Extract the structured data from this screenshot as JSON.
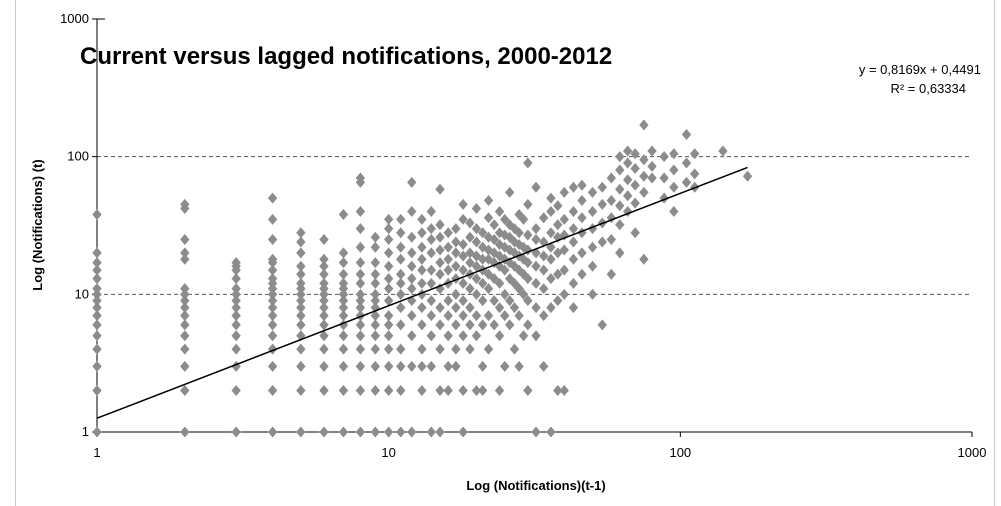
{
  "chart_data": {
    "type": "scatter",
    "title": "Current versus lagged notifications, 2000-2012",
    "xlabel": "Log (Notifications)(t-1)",
    "ylabel": "Log (Notifications) (t)",
    "xscale": "log",
    "yscale": "log",
    "xlim": [
      1,
      1000
    ],
    "ylim": [
      1,
      1000
    ],
    "x_ticks": [
      "1",
      "10",
      "100",
      "1000"
    ],
    "y_ticks": [
      "1",
      "10",
      "100",
      "1000"
    ],
    "grid": "horizontal-dashed",
    "legend": "none",
    "marker_color": "#8c8c8c",
    "trendline": {
      "equation": "y = 0,8169x + 0,4491",
      "r_squared": "R² = 0,63334",
      "slope": 0.8169,
      "log_intercept": 0.1,
      "x_range": [
        1,
        170
      ],
      "color": "#000000"
    },
    "points": [
      [
        1,
        1
      ],
      [
        1,
        2
      ],
      [
        1,
        3
      ],
      [
        1,
        4
      ],
      [
        1,
        5
      ],
      [
        1,
        6
      ],
      [
        1,
        7
      ],
      [
        1,
        8
      ],
      [
        1,
        9
      ],
      [
        1,
        10
      ],
      [
        1,
        11
      ],
      [
        1,
        13
      ],
      [
        1,
        15
      ],
      [
        1,
        17
      ],
      [
        1,
        20
      ],
      [
        1,
        38
      ],
      [
        2,
        1
      ],
      [
        2,
        2
      ],
      [
        2,
        3
      ],
      [
        2,
        4
      ],
      [
        2,
        5
      ],
      [
        2,
        6
      ],
      [
        2,
        7
      ],
      [
        2,
        8
      ],
      [
        2,
        9
      ],
      [
        2,
        10
      ],
      [
        2,
        11
      ],
      [
        2,
        18
      ],
      [
        2,
        20
      ],
      [
        2,
        25
      ],
      [
        2,
        42
      ],
      [
        2,
        45
      ],
      [
        3,
        1
      ],
      [
        3,
        2
      ],
      [
        3,
        3
      ],
      [
        3,
        4
      ],
      [
        3,
        5
      ],
      [
        3,
        6
      ],
      [
        3,
        7
      ],
      [
        3,
        8
      ],
      [
        3,
        9
      ],
      [
        3,
        10
      ],
      [
        3,
        11
      ],
      [
        3,
        13
      ],
      [
        3,
        15
      ],
      [
        3,
        16
      ],
      [
        3,
        17
      ],
      [
        4,
        1
      ],
      [
        4,
        2
      ],
      [
        4,
        3
      ],
      [
        4,
        4
      ],
      [
        4,
        5
      ],
      [
        4,
        6
      ],
      [
        4,
        7
      ],
      [
        4,
        8
      ],
      [
        4,
        9
      ],
      [
        4,
        10
      ],
      [
        4,
        11
      ],
      [
        4,
        12
      ],
      [
        4,
        13
      ],
      [
        4,
        15
      ],
      [
        4,
        17
      ],
      [
        4,
        18
      ],
      [
        4,
        25
      ],
      [
        4,
        35
      ],
      [
        4,
        50
      ],
      [
        5,
        1
      ],
      [
        5,
        2
      ],
      [
        5,
        3
      ],
      [
        5,
        4
      ],
      [
        5,
        5
      ],
      [
        5,
        6
      ],
      [
        5,
        7
      ],
      [
        5,
        8
      ],
      [
        5,
        9
      ],
      [
        5,
        10
      ],
      [
        5,
        11
      ],
      [
        5,
        12
      ],
      [
        5,
        14
      ],
      [
        5,
        16
      ],
      [
        5,
        20
      ],
      [
        5,
        24
      ],
      [
        5,
        28
      ],
      [
        6,
        1
      ],
      [
        6,
        2
      ],
      [
        6,
        3
      ],
      [
        6,
        4
      ],
      [
        6,
        5
      ],
      [
        6,
        6
      ],
      [
        6,
        7
      ],
      [
        6,
        8
      ],
      [
        6,
        9
      ],
      [
        6,
        10
      ],
      [
        6,
        11
      ],
      [
        6,
        12
      ],
      [
        6,
        14
      ],
      [
        6,
        16
      ],
      [
        6,
        18
      ],
      [
        6,
        25
      ],
      [
        7,
        1
      ],
      [
        7,
        2
      ],
      [
        7,
        3
      ],
      [
        7,
        4
      ],
      [
        7,
        5
      ],
      [
        7,
        6
      ],
      [
        7,
        7
      ],
      [
        7,
        8
      ],
      [
        7,
        9
      ],
      [
        7,
        10
      ],
      [
        7,
        11
      ],
      [
        7,
        12
      ],
      [
        7,
        14
      ],
      [
        7,
        17
      ],
      [
        7,
        20
      ],
      [
        7,
        38
      ],
      [
        8,
        1
      ],
      [
        8,
        2
      ],
      [
        8,
        3
      ],
      [
        8,
        4
      ],
      [
        8,
        5
      ],
      [
        8,
        6
      ],
      [
        8,
        7
      ],
      [
        8,
        8
      ],
      [
        8,
        9
      ],
      [
        8,
        10
      ],
      [
        8,
        12
      ],
      [
        8,
        14
      ],
      [
        8,
        17
      ],
      [
        8,
        22
      ],
      [
        8,
        30
      ],
      [
        8,
        40
      ],
      [
        8,
        65
      ],
      [
        8,
        70
      ],
      [
        9,
        1
      ],
      [
        9,
        2
      ],
      [
        9,
        3
      ],
      [
        9,
        4
      ],
      [
        9,
        5
      ],
      [
        9,
        6
      ],
      [
        9,
        7
      ],
      [
        9,
        8
      ],
      [
        9,
        9
      ],
      [
        9,
        10
      ],
      [
        9,
        12
      ],
      [
        9,
        14
      ],
      [
        9,
        17
      ],
      [
        9,
        22
      ],
      [
        9,
        26
      ],
      [
        10,
        1
      ],
      [
        10,
        2
      ],
      [
        10,
        3
      ],
      [
        10,
        4
      ],
      [
        10,
        5
      ],
      [
        10,
        6
      ],
      [
        10,
        7
      ],
      [
        10,
        9
      ],
      [
        10,
        11
      ],
      [
        10,
        13
      ],
      [
        10,
        16
      ],
      [
        10,
        20
      ],
      [
        10,
        25
      ],
      [
        10,
        30
      ],
      [
        10,
        35
      ],
      [
        11,
        1
      ],
      [
        11,
        2
      ],
      [
        11,
        3
      ],
      [
        11,
        4
      ],
      [
        11,
        6
      ],
      [
        11,
        8
      ],
      [
        11,
        10
      ],
      [
        11,
        12
      ],
      [
        11,
        14
      ],
      [
        11,
        18
      ],
      [
        11,
        22
      ],
      [
        11,
        28
      ],
      [
        11,
        35
      ],
      [
        12,
        1
      ],
      [
        12,
        3
      ],
      [
        12,
        5
      ],
      [
        12,
        7
      ],
      [
        12,
        9
      ],
      [
        12,
        11
      ],
      [
        12,
        13
      ],
      [
        12,
        16
      ],
      [
        12,
        20
      ],
      [
        12,
        26
      ],
      [
        12,
        40
      ],
      [
        12,
        65
      ],
      [
        13,
        2
      ],
      [
        13,
        3
      ],
      [
        13,
        4
      ],
      [
        13,
        6
      ],
      [
        13,
        8
      ],
      [
        13,
        10
      ],
      [
        13,
        12
      ],
      [
        13,
        15
      ],
      [
        13,
        18
      ],
      [
        13,
        22
      ],
      [
        13,
        28
      ],
      [
        13,
        35
      ],
      [
        14,
        1
      ],
      [
        14,
        3
      ],
      [
        14,
        5
      ],
      [
        14,
        7
      ],
      [
        14,
        9
      ],
      [
        14,
        12
      ],
      [
        14,
        15
      ],
      [
        14,
        20
      ],
      [
        14,
        25
      ],
      [
        14,
        30
      ],
      [
        14,
        40
      ],
      [
        15,
        1
      ],
      [
        15,
        2
      ],
      [
        15,
        4
      ],
      [
        15,
        6
      ],
      [
        15,
        8
      ],
      [
        15,
        11
      ],
      [
        15,
        14
      ],
      [
        15,
        17
      ],
      [
        15,
        21
      ],
      [
        15,
        26
      ],
      [
        15,
        32
      ],
      [
        15,
        58
      ],
      [
        16,
        2
      ],
      [
        16,
        3
      ],
      [
        16,
        5
      ],
      [
        16,
        7
      ],
      [
        16,
        9
      ],
      [
        16,
        12
      ],
      [
        16,
        15
      ],
      [
        16,
        18
      ],
      [
        16,
        22
      ],
      [
        16,
        28
      ],
      [
        17,
        3
      ],
      [
        17,
        4
      ],
      [
        17,
        6
      ],
      [
        17,
        8
      ],
      [
        17,
        10
      ],
      [
        17,
        13
      ],
      [
        17,
        16
      ],
      [
        17,
        20
      ],
      [
        17,
        24
      ],
      [
        17,
        30
      ],
      [
        18,
        1
      ],
      [
        18,
        2
      ],
      [
        18,
        5
      ],
      [
        18,
        7
      ],
      [
        18,
        9
      ],
      [
        18,
        12
      ],
      [
        18,
        15
      ],
      [
        18,
        19
      ],
      [
        18,
        23
      ],
      [
        18,
        35
      ],
      [
        18,
        45
      ],
      [
        19,
        4
      ],
      [
        19,
        6
      ],
      [
        19,
        8
      ],
      [
        19,
        11
      ],
      [
        19,
        14
      ],
      [
        19,
        17
      ],
      [
        19,
        20
      ],
      [
        19,
        26
      ],
      [
        19,
        33
      ],
      [
        20,
        2
      ],
      [
        20,
        5
      ],
      [
        20,
        7
      ],
      [
        20,
        10
      ],
      [
        20,
        13
      ],
      [
        20,
        16
      ],
      [
        20,
        19
      ],
      [
        20,
        24
      ],
      [
        20,
        30
      ],
      [
        20,
        42
      ],
      [
        21,
        2
      ],
      [
        21,
        3
      ],
      [
        21,
        6
      ],
      [
        21,
        9
      ],
      [
        21,
        12
      ],
      [
        21,
        15
      ],
      [
        21,
        18
      ],
      [
        21,
        22
      ],
      [
        21,
        28
      ],
      [
        22,
        4
      ],
      [
        22,
        7
      ],
      [
        22,
        11
      ],
      [
        22,
        14
      ],
      [
        22,
        18
      ],
      [
        22,
        21
      ],
      [
        22,
        26
      ],
      [
        22,
        36
      ],
      [
        22,
        48
      ],
      [
        23,
        6
      ],
      [
        23,
        9
      ],
      [
        23,
        13
      ],
      [
        23,
        17
      ],
      [
        23,
        20
      ],
      [
        23,
        25
      ],
      [
        23,
        32
      ],
      [
        24,
        2
      ],
      [
        24,
        5
      ],
      [
        24,
        8
      ],
      [
        24,
        12
      ],
      [
        24,
        16
      ],
      [
        24,
        19
      ],
      [
        24,
        23
      ],
      [
        24,
        28
      ],
      [
        24,
        40
      ],
      [
        25,
        3
      ],
      [
        25,
        7
      ],
      [
        25,
        10
      ],
      [
        25,
        15
      ],
      [
        25,
        18
      ],
      [
        25,
        22
      ],
      [
        25,
        27
      ],
      [
        25,
        35
      ],
      [
        26,
        6
      ],
      [
        26,
        9
      ],
      [
        26,
        13
      ],
      [
        26,
        17
      ],
      [
        26,
        21
      ],
      [
        26,
        26
      ],
      [
        26,
        32
      ],
      [
        26,
        55
      ],
      [
        27,
        4
      ],
      [
        27,
        8
      ],
      [
        27,
        12
      ],
      [
        27,
        16
      ],
      [
        27,
        20
      ],
      [
        27,
        24
      ],
      [
        27,
        30
      ],
      [
        28,
        3
      ],
      [
        28,
        7
      ],
      [
        28,
        11
      ],
      [
        28,
        15
      ],
      [
        28,
        19
      ],
      [
        28,
        23
      ],
      [
        28,
        28
      ],
      [
        28,
        38
      ],
      [
        29,
        5
      ],
      [
        29,
        10
      ],
      [
        29,
        14
      ],
      [
        29,
        18
      ],
      [
        29,
        22
      ],
      [
        29,
        35
      ],
      [
        30,
        2
      ],
      [
        30,
        6
      ],
      [
        30,
        9
      ],
      [
        30,
        13
      ],
      [
        30,
        17
      ],
      [
        30,
        21
      ],
      [
        30,
        27
      ],
      [
        30,
        45
      ],
      [
        30,
        90
      ],
      [
        32,
        1
      ],
      [
        32,
        5
      ],
      [
        32,
        8
      ],
      [
        32,
        12
      ],
      [
        32,
        16
      ],
      [
        32,
        20
      ],
      [
        32,
        25
      ],
      [
        32,
        30
      ],
      [
        32,
        60
      ],
      [
        34,
        3
      ],
      [
        34,
        7
      ],
      [
        34,
        11
      ],
      [
        34,
        15
      ],
      [
        34,
        19
      ],
      [
        34,
        24
      ],
      [
        34,
        36
      ],
      [
        36,
        1
      ],
      [
        36,
        8
      ],
      [
        36,
        13
      ],
      [
        36,
        18
      ],
      [
        36,
        22
      ],
      [
        36,
        28
      ],
      [
        36,
        40
      ],
      [
        36,
        50
      ],
      [
        38,
        2
      ],
      [
        38,
        9
      ],
      [
        38,
        14
      ],
      [
        38,
        20
      ],
      [
        38,
        26
      ],
      [
        38,
        32
      ],
      [
        38,
        44
      ],
      [
        40,
        2
      ],
      [
        40,
        10
      ],
      [
        40,
        15
      ],
      [
        40,
        21
      ],
      [
        40,
        27
      ],
      [
        40,
        35
      ],
      [
        40,
        55
      ],
      [
        43,
        8
      ],
      [
        43,
        12
      ],
      [
        43,
        18
      ],
      [
        43,
        24
      ],
      [
        43,
        30
      ],
      [
        43,
        40
      ],
      [
        43,
        60
      ],
      [
        46,
        14
      ],
      [
        46,
        20
      ],
      [
        46,
        28
      ],
      [
        46,
        36
      ],
      [
        46,
        48
      ],
      [
        46,
        62
      ],
      [
        50,
        10
      ],
      [
        50,
        16
      ],
      [
        50,
        22
      ],
      [
        50,
        30
      ],
      [
        50,
        40
      ],
      [
        50,
        55
      ],
      [
        54,
        6
      ],
      [
        54,
        24
      ],
      [
        54,
        33
      ],
      [
        54,
        45
      ],
      [
        54,
        60
      ],
      [
        58,
        14
      ],
      [
        58,
        25
      ],
      [
        58,
        36
      ],
      [
        58,
        48
      ],
      [
        58,
        70
      ],
      [
        62,
        20
      ],
      [
        62,
        32
      ],
      [
        62,
        44
      ],
      [
        62,
        58
      ],
      [
        62,
        80
      ],
      [
        62,
        100
      ],
      [
        66,
        40
      ],
      [
        66,
        52
      ],
      [
        66,
        68
      ],
      [
        66,
        90
      ],
      [
        66,
        110
      ],
      [
        70,
        28
      ],
      [
        70,
        46
      ],
      [
        70,
        62
      ],
      [
        70,
        82
      ],
      [
        70,
        105
      ],
      [
        75,
        18
      ],
      [
        75,
        55
      ],
      [
        75,
        72
      ],
      [
        75,
        95
      ],
      [
        75,
        170
      ],
      [
        80,
        70
      ],
      [
        80,
        85
      ],
      [
        80,
        110
      ],
      [
        88,
        50
      ],
      [
        88,
        70
      ],
      [
        88,
        100
      ],
      [
        95,
        40
      ],
      [
        95,
        60
      ],
      [
        95,
        80
      ],
      [
        95,
        105
      ],
      [
        105,
        65
      ],
      [
        105,
        90
      ],
      [
        105,
        145
      ],
      [
        112,
        60
      ],
      [
        112,
        75
      ],
      [
        112,
        105
      ],
      [
        140,
        110
      ],
      [
        170,
        72
      ]
    ]
  }
}
